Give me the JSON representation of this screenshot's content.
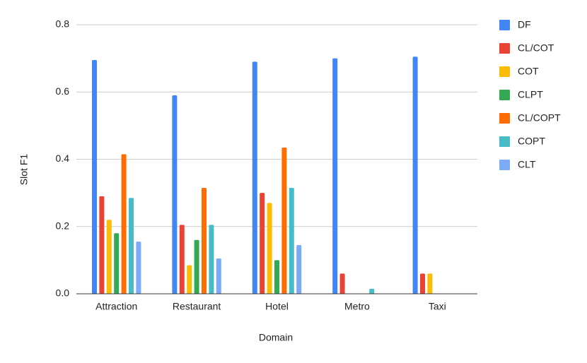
{
  "chart_data": {
    "type": "bar",
    "x_label": "Domain",
    "y_label": "Slot F1",
    "categories": [
      "Attraction",
      "Restaurant",
      "Hotel",
      "Metro",
      "Taxi"
    ],
    "series": [
      {
        "name": "DF",
        "color": "#4285f4",
        "values": [
          0.695,
          0.59,
          0.69,
          0.7,
          0.705
        ]
      },
      {
        "name": "CL/COT",
        "color": "#ea4335",
        "values": [
          0.29,
          0.205,
          0.3,
          0.06,
          0.06
        ]
      },
      {
        "name": "COT",
        "color": "#fbbc04",
        "values": [
          0.22,
          0.085,
          0.27,
          0,
          0.06
        ]
      },
      {
        "name": "CLPT",
        "color": "#34a853",
        "values": [
          0.18,
          0.16,
          0.1,
          0,
          0
        ]
      },
      {
        "name": "CL/COPT",
        "color": "#ff6d01",
        "values": [
          0.415,
          0.315,
          0.435,
          0,
          0
        ]
      },
      {
        "name": "COPT",
        "color": "#46bdc6",
        "values": [
          0.285,
          0.205,
          0.315,
          0.015,
          0
        ]
      },
      {
        "name": "CLT",
        "color": "#7baaf7",
        "values": [
          0.155,
          0.105,
          0.145,
          0,
          0
        ]
      }
    ],
    "ylim": [
      0,
      0.8
    ],
    "yticks": [
      {
        "value": 0,
        "label": "0.0"
      },
      0.2,
      0.4,
      0.6,
      0.8
    ],
    "grid": true,
    "legend": "right"
  }
}
